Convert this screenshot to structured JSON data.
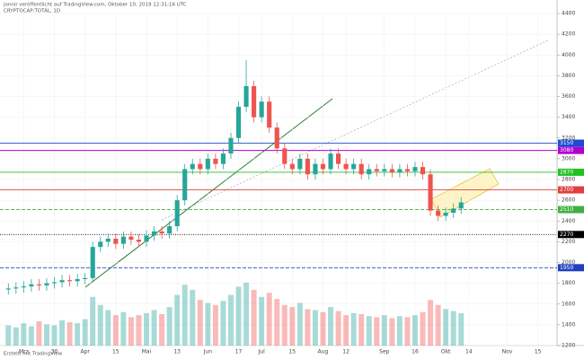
{
  "header": {
    "author_line": "jonnir veröffentlicht auf TradingView.com, Oktober 10, 2019 12:31:16 UTC",
    "symbol_line": "CRYPTOCAP:TOTAL, 1D"
  },
  "footer": {
    "credit": "Erstellt mit TradingView"
  },
  "chart_data": {
    "type": "candlestick",
    "categories": [
      null,
      null,
      "Mrz",
      null,
      null,
      null,
      "30",
      null,
      null,
      null,
      "Apr",
      null,
      null,
      null,
      "15",
      null,
      null,
      null,
      "Mai",
      null,
      null,
      null,
      "13",
      null,
      null,
      null,
      "Jun",
      null,
      null,
      null,
      "17",
      null,
      null,
      "Jul",
      null,
      null,
      null,
      "15",
      null,
      null,
      null,
      "Aug",
      null,
      null,
      "12",
      null,
      null,
      null,
      null,
      "Sep",
      null,
      null,
      null,
      "16",
      null,
      null,
      null,
      "Okt",
      null,
      null,
      "14",
      null,
      null,
      null,
      null,
      "Nov",
      null,
      null,
      null,
      "15",
      null,
      null
    ],
    "open": [
      1740,
      1750,
      1760,
      1770,
      1790,
      1780,
      1800,
      1810,
      1830,
      1820,
      1840,
      1850,
      2150,
      2200,
      2230,
      2180,
      2250,
      2220,
      2200,
      2260,
      2300,
      2280,
      2350,
      2600,
      2900,
      2950,
      2900,
      3000,
      2950,
      3050,
      3200,
      3500,
      3700,
      3400,
      3550,
      3300,
      3100,
      2950,
      2900,
      3000,
      2850,
      2950,
      2900,
      3050,
      2950,
      2900,
      2950,
      2850,
      2900,
      2880,
      2900,
      2870,
      2900,
      2880,
      2920,
      2850,
      2500,
      2450,
      2480,
      2520,
      null,
      null,
      null,
      null,
      null,
      null,
      null,
      null,
      null,
      null,
      null,
      null
    ],
    "high": [
      1800,
      1810,
      1820,
      1840,
      1840,
      1850,
      1860,
      1880,
      1880,
      1890,
      1900,
      2200,
      2250,
      2280,
      2280,
      2300,
      2300,
      2270,
      2310,
      2350,
      2350,
      2400,
      2650,
      2950,
      3000,
      3000,
      3050,
      3050,
      3100,
      3250,
      3550,
      3950,
      3750,
      3600,
      3600,
      3350,
      3150,
      3000,
      3050,
      3050,
      3000,
      3000,
      3100,
      3100,
      3000,
      3000,
      3000,
      2950,
      2950,
      2950,
      2950,
      2950,
      2950,
      2970,
      2970,
      2900,
      2550,
      2530,
      2570,
      2630,
      null,
      null,
      null,
      null,
      null,
      null,
      null,
      null,
      null,
      null,
      null,
      null
    ],
    "low": [
      1690,
      1700,
      1710,
      1720,
      1730,
      1730,
      1750,
      1760,
      1770,
      1770,
      1790,
      1820,
      2100,
      2150,
      2130,
      2130,
      2170,
      2150,
      2150,
      2210,
      2230,
      2230,
      2300,
      2550,
      2850,
      2850,
      2850,
      2900,
      2900,
      3000,
      3150,
      3450,
      3350,
      3350,
      3250,
      3050,
      2900,
      2850,
      2850,
      2800,
      2800,
      2850,
      2850,
      2900,
      2850,
      2850,
      2800,
      2800,
      2830,
      2830,
      2820,
      2820,
      2830,
      2830,
      2800,
      2450,
      2400,
      2400,
      2430,
      2470,
      null,
      null,
      null,
      null,
      null,
      null,
      null,
      null,
      null,
      null,
      null,
      null
    ],
    "close": [
      1750,
      1760,
      1770,
      1790,
      1780,
      1800,
      1810,
      1830,
      1820,
      1840,
      1850,
      2150,
      2200,
      2230,
      2180,
      2250,
      2220,
      2200,
      2260,
      2300,
      2280,
      2350,
      2600,
      2900,
      2950,
      2900,
      3000,
      2950,
      3050,
      3200,
      3500,
      3700,
      3400,
      3550,
      3300,
      3100,
      2950,
      2900,
      3000,
      2850,
      2950,
      2900,
      3050,
      2950,
      2900,
      2950,
      2850,
      2900,
      2880,
      2900,
      2870,
      2900,
      2880,
      2920,
      2850,
      2500,
      2450,
      2480,
      2520,
      2580,
      null,
      null,
      null,
      null,
      null,
      null,
      null,
      null,
      null,
      null,
      null,
      null
    ],
    "volume": [
      20,
      18,
      22,
      19,
      24,
      21,
      20,
      25,
      23,
      22,
      26,
      48,
      40,
      35,
      30,
      33,
      28,
      30,
      32,
      35,
      31,
      38,
      50,
      60,
      55,
      45,
      42,
      40,
      44,
      50,
      58,
      62,
      55,
      48,
      52,
      46,
      40,
      38,
      42,
      36,
      35,
      33,
      38,
      34,
      30,
      32,
      31,
      29,
      28,
      30,
      27,
      29,
      28,
      30,
      33,
      45,
      40,
      36,
      34,
      32,
      null,
      null,
      null,
      null,
      null,
      null,
      null,
      null,
      null,
      null,
      null,
      null
    ],
    "up_color": "#26a69a",
    "down_color": "#ef5350",
    "ylim": [
      1200,
      4400
    ],
    "yticks": [
      1200,
      1400,
      1600,
      1800,
      2000,
      2200,
      2400,
      2600,
      2800,
      3000,
      3200,
      3400,
      3600,
      3800,
      4000,
      4200,
      4400
    ],
    "levels": [
      {
        "value": 3150,
        "color": "#1e4bd2",
        "style": "solid"
      },
      {
        "value": 3080,
        "color": "#b000d0",
        "style": "solid"
      },
      {
        "value": 2870,
        "color": "#22c022",
        "style": "solid"
      },
      {
        "value": 2700,
        "color": "#e04040",
        "style": "solid"
      },
      {
        "value": 2510,
        "color": "#40b040",
        "style": "dashed"
      },
      {
        "value": 2270,
        "color": "#000000",
        "style": "dotted"
      },
      {
        "value": 1950,
        "color": "#2040c0",
        "style": "dashed"
      }
    ],
    "grid": true
  }
}
